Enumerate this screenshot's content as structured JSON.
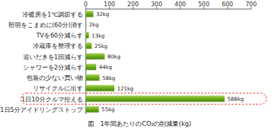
{
  "chart_data": {
    "type": "bar",
    "orientation": "horizontal",
    "title": "図　1年間あたりのCO₂の削減量(kg)",
    "categories": [
      "冷暖房を1℃調節する",
      "照明をこまめに(60分)消す",
      "TVを60分減らす",
      "冷蔵庫を整理する",
      "追いだきを1回減らす",
      "シャワーを2分減らす",
      "包装の少ない買い物",
      "リサイクルに出す",
      "1日10分クルマ控える",
      "1日5分アイドリングストップ"
    ],
    "values": [
      32,
      2,
      13,
      25,
      80,
      44,
      58,
      121,
      588,
      55
    ],
    "value_labels": [
      "32kg",
      "2kg",
      "13kg",
      "25kg",
      "80kg",
      "44kg",
      "58kg",
      "121kg",
      "588kg",
      "55kg"
    ],
    "data_labels": true,
    "color": "#6aa81c",
    "xlim": [
      0,
      700
    ],
    "xticks": [
      0,
      100,
      200,
      300,
      400,
      500,
      600,
      700
    ],
    "grid": false
  }
}
